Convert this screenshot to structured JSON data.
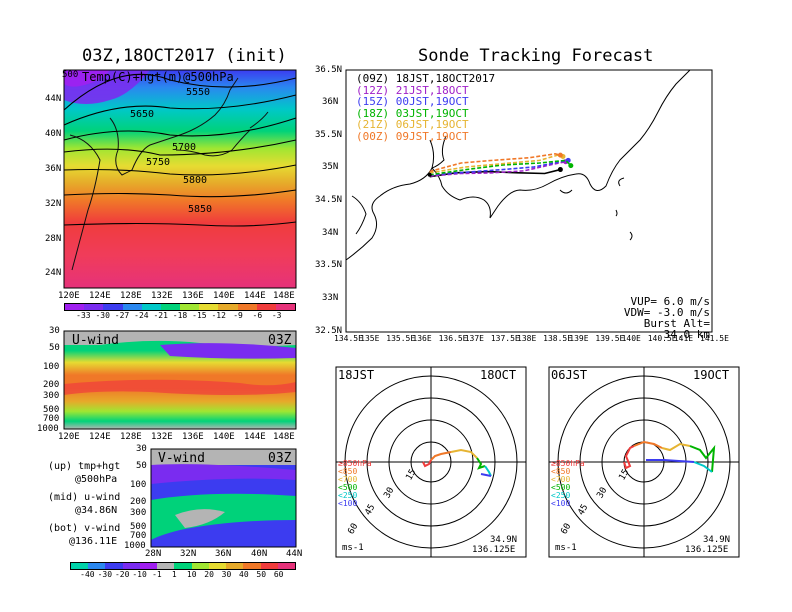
{
  "left_title": "03Z,18OCT2017 (init)",
  "right_title": "Sonde Tracking Forecast",
  "map500": {
    "overlay_label": "Temp(C)+hgt(m)@500hPa",
    "edge_label": "500",
    "lat_labels": [
      "44N",
      "40N",
      "36N",
      "32N",
      "28N",
      "24N"
    ],
    "lon_labels": [
      "120E",
      "124E",
      "128E",
      "132E",
      "136E",
      "140E",
      "144E",
      "148E"
    ],
    "contour_labels": [
      "5550",
      "5650",
      "5700",
      "5750",
      "5800",
      "5850"
    ],
    "colorbar": {
      "labels": [
        "-33",
        "-30",
        "-27",
        "-24",
        "-21",
        "-18",
        "-15",
        "-12",
        "-9",
        "-6",
        "-3"
      ],
      "colors": [
        "#a020f0",
        "#7a2cf0",
        "#3c3cf0",
        "#2a88f0",
        "#00c8c8",
        "#00d27a",
        "#a0e632",
        "#e6dc32",
        "#e6aa2a",
        "#f07828",
        "#f03c3c",
        "#e6327a"
      ]
    }
  },
  "uwind": {
    "label": "U-wind",
    "time": "03Z",
    "p_labels": [
      "30",
      "50",
      "100",
      "200",
      "300",
      "500",
      "700",
      "1000"
    ],
    "lon_labels": [
      "120E",
      "124E",
      "128E",
      "132E",
      "136E",
      "140E",
      "144E",
      "148E"
    ]
  },
  "vwind": {
    "label": "V-wind",
    "time": "03Z",
    "p_labels": [
      "30",
      "50",
      "100",
      "200",
      "300",
      "500",
      "700",
      "1000"
    ],
    "lat_labels": [
      "28N",
      "32N",
      "36N",
      "40N",
      "44N"
    ],
    "colorbar": {
      "labels": [
        "-40",
        "-30",
        "-20",
        "-10",
        "-1",
        "1",
        "10",
        "20",
        "30",
        "40",
        "50",
        "60"
      ],
      "colors": [
        "#00d2aa",
        "#2a88f0",
        "#3c3cf0",
        "#7a2cf0",
        "#a020f0",
        "#b4b4b4",
        "#00d27a",
        "#a0e632",
        "#e6dc32",
        "#e6aa2a",
        "#f07828",
        "#f03c3c",
        "#e6327a"
      ]
    }
  },
  "legend_notes": [
    {
      "a": "(up) tmp+hgt",
      "b": "@500hPa"
    },
    {
      "a": "(mid) u-wind",
      "b": "@34.86N"
    },
    {
      "a": "(bot) v-wind",
      "b": "@136.11E"
    }
  ],
  "track_map": {
    "lat_labels": [
      "36.5N",
      "36N",
      "35.5N",
      "35N",
      "34.5N",
      "34N",
      "33.5N",
      "33N",
      "32.5N"
    ],
    "lon_labels": [
      "134.5E",
      "135E",
      "135.5E",
      "136E",
      "136.5E",
      "137E",
      "137.5E",
      "138E",
      "138.5E",
      "139E",
      "139.5E",
      "140E",
      "140.5E",
      "141E",
      "141.5E"
    ],
    "legend": [
      {
        "text": "(09Z)  18JST,18OCT2017",
        "color": "#000000"
      },
      {
        "text": "(12Z)  21JST,18OCT",
        "color": "#a020c8"
      },
      {
        "text": "(15Z)  00JST,19OCT",
        "color": "#3c3cf0"
      },
      {
        "text": "(18Z)  03JST,19OCT",
        "color": "#00b400"
      },
      {
        "text": "(21Z)  06JST,19OCT",
        "color": "#e6b432"
      },
      {
        "text": "(00Z)  09JST,19OCT",
        "color": "#f07828"
      }
    ],
    "params": [
      "VUP=  6.0 m/s",
      "VDW= -3.0 m/s",
      "Burst Alt= 34.0 km"
    ]
  },
  "chart_data": [
    {
      "type": "line",
      "title": "Sonde Tracking Forecast",
      "xlim": [
        134.5,
        141.5
      ],
      "ylim": [
        32.5,
        36.5
      ],
      "series": [
        {
          "name": "(09Z)  18JST,18OCT2017",
          "x": [
            136.1,
            136.6,
            137.2,
            137.8,
            138.3,
            138.6
          ],
          "y": [
            34.87,
            34.93,
            34.95,
            34.93,
            34.92,
            34.98
          ]
        },
        {
          "name": "(12Z)  21JST,18OCT",
          "x": [
            136.1,
            136.7,
            137.3,
            137.9,
            138.4,
            138.7
          ],
          "y": [
            34.88,
            34.92,
            34.93,
            34.96,
            35.05,
            35.1
          ]
        },
        {
          "name": "(15Z)  00JST,19OCT",
          "x": [
            136.1,
            136.8,
            137.5,
            138.1,
            138.6,
            138.75
          ],
          "y": [
            34.9,
            34.94,
            34.98,
            35.02,
            35.1,
            35.12
          ]
        },
        {
          "name": "(18Z)  03JST,19OCT",
          "x": [
            136.1,
            136.8,
            137.5,
            138.2,
            138.7,
            138.8
          ],
          "y": [
            34.9,
            34.98,
            35.05,
            35.08,
            35.12,
            35.04
          ]
        },
        {
          "name": "(21Z)  06JST,19OCT",
          "x": [
            136.1,
            136.8,
            137.5,
            138.2,
            138.55,
            138.65
          ],
          "y": [
            34.93,
            35.02,
            35.07,
            35.12,
            35.2,
            35.18
          ]
        },
        {
          "name": "(00Z)  09JST,19OCT",
          "x": [
            136.1,
            136.7,
            137.3,
            138.0,
            138.5,
            138.6
          ],
          "y": [
            34.95,
            35.08,
            35.12,
            35.16,
            35.22,
            35.2
          ]
        }
      ]
    }
  ],
  "polar_left": {
    "time": "18JST",
    "date": "18OCT",
    "ring_labels": [
      "15",
      "30",
      "45",
      "60"
    ],
    "pressure_legend": [
      {
        "text": "≥850hPa",
        "color": "#f03c3c"
      },
      {
        "text": "<850",
        "color": "#f07828"
      },
      {
        "text": "<700",
        "color": "#e6b432"
      },
      {
        "text": "<500",
        "color": "#00b400"
      },
      {
        "text": "<250",
        "color": "#00c8c8"
      },
      {
        "text": "<100",
        "color": "#3c3cf0"
      }
    ],
    "unit": "ms-1",
    "loc_lat": "34.9N",
    "loc_lon": "136.125E"
  },
  "polar_right": {
    "time": "06JST",
    "date": "19OCT",
    "ring_labels": [
      "15",
      "30",
      "45",
      "60"
    ],
    "pressure_legend": [
      {
        "text": "≥850hPa",
        "color": "#f03c3c"
      },
      {
        "text": "<850",
        "color": "#f07828"
      },
      {
        "text": "<700",
        "color": "#e6b432"
      },
      {
        "text": "<500",
        "color": "#00b400"
      },
      {
        "text": "<250",
        "color": "#00c8c8"
      },
      {
        "text": "<100",
        "color": "#3c3cf0"
      }
    ],
    "unit": "ms-1",
    "loc_lat": "34.9N",
    "loc_lon": "136.125E"
  }
}
